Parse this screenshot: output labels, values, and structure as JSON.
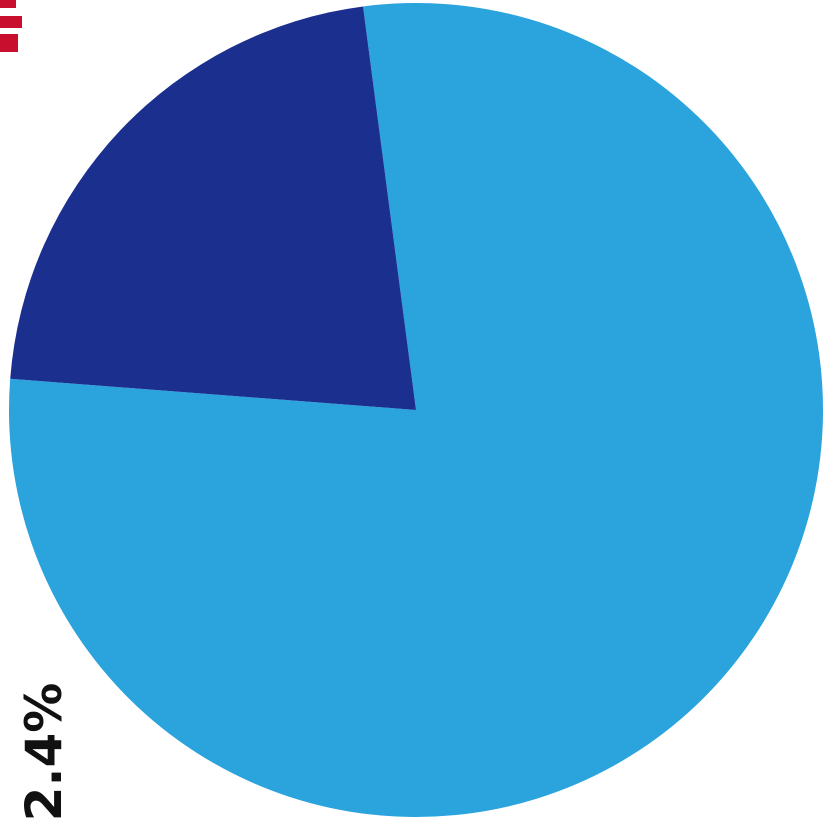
{
  "chart_data": {
    "type": "pie",
    "start_angle_deg": 184.4,
    "direction": "counterclockwise",
    "slices": [
      {
        "value": 78.3,
        "color": "#2ba3dd"
      },
      {
        "value": 21.7,
        "color": "#1b2f8f"
      }
    ],
    "labels": [
      {
        "text": "2.4%",
        "rotation": "vertical"
      }
    ]
  }
}
